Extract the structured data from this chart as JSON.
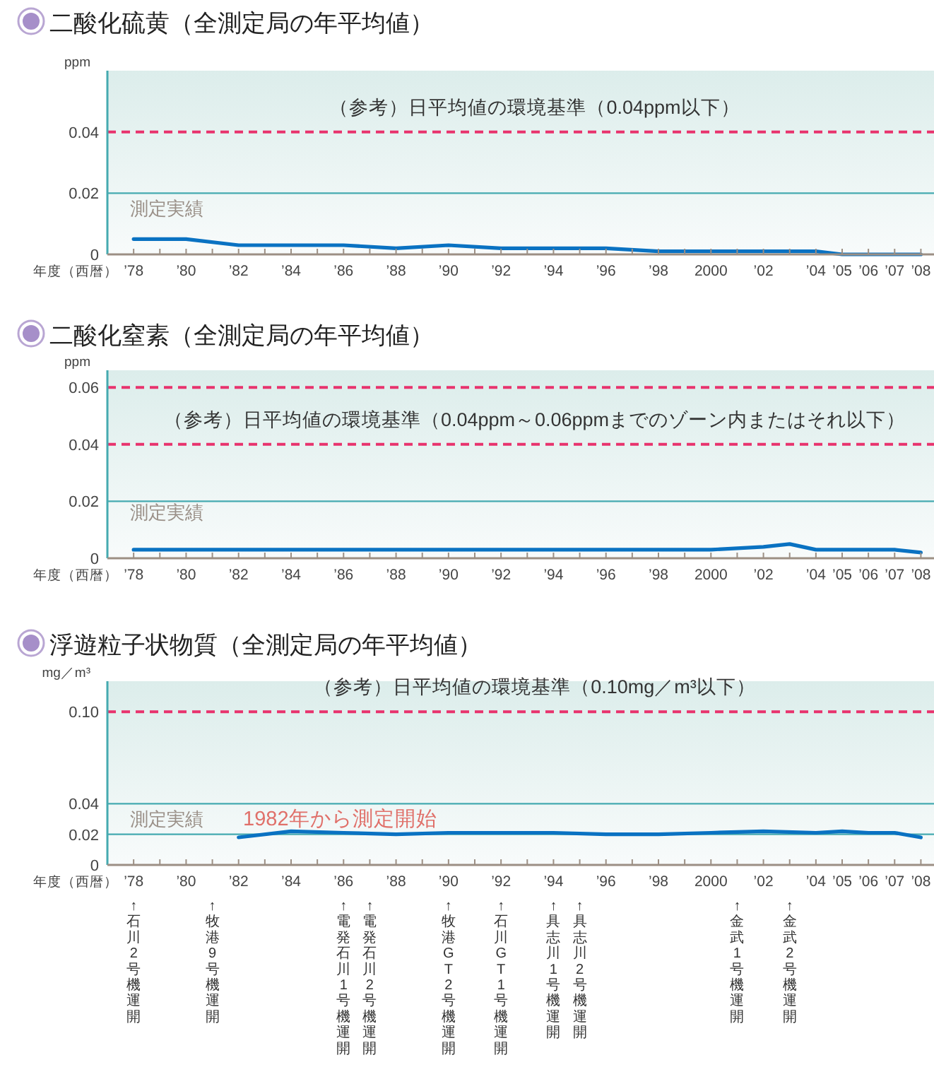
{
  "chart_data": [
    {
      "type": "line",
      "title": "二酸化硫黄（全測定局の年平均値）",
      "ylabel": "ppm",
      "xlabel": "年度（西暦）",
      "xlim": [
        1977,
        2008.5
      ],
      "ylim": [
        0,
        0.06
      ],
      "yticks": [
        0,
        0.02,
        0.04
      ],
      "xticks": [
        {
          "value": 1978,
          "label": "’78"
        },
        {
          "value": 1979,
          "label": null
        },
        {
          "value": 1980,
          "label": "’80"
        },
        {
          "value": 1981,
          "label": null
        },
        {
          "value": 1982,
          "label": "’82"
        },
        {
          "value": 1983,
          "label": null
        },
        {
          "value": 1984,
          "label": "’84"
        },
        {
          "value": 1985,
          "label": null
        },
        {
          "value": 1986,
          "label": "’86"
        },
        {
          "value": 1987,
          "label": null
        },
        {
          "value": 1988,
          "label": "’88"
        },
        {
          "value": 1989,
          "label": null
        },
        {
          "value": 1990,
          "label": "’90"
        },
        {
          "value": 1991,
          "label": null
        },
        {
          "value": 1992,
          "label": "’92"
        },
        {
          "value": 1993,
          "label": null
        },
        {
          "value": 1994,
          "label": "’94"
        },
        {
          "value": 1995,
          "label": null
        },
        {
          "value": 1996,
          "label": "’96"
        },
        {
          "value": 1997,
          "label": null
        },
        {
          "value": 1998,
          "label": "’98"
        },
        {
          "value": 1999,
          "label": null
        },
        {
          "value": 2000,
          "label": "2000"
        },
        {
          "value": 2001,
          "label": null
        },
        {
          "value": 2002,
          "label": "’02"
        },
        {
          "value": 2003,
          "label": null
        },
        {
          "value": 2004,
          "label": "’04"
        },
        {
          "value": 2005,
          "label": "’05"
        },
        {
          "value": 2006,
          "label": "’06"
        },
        {
          "value": 2007,
          "label": "’07"
        },
        {
          "value": 2008,
          "label": "’08"
        }
      ],
      "x": [
        1978,
        1980,
        1982,
        1984,
        1986,
        1988,
        1990,
        1992,
        1994,
        1996,
        1998,
        2000,
        2002,
        2004,
        2005,
        2006,
        2007,
        2008
      ],
      "series": [
        {
          "color": "#0a72c2",
          "values": [
            0.005,
            0.005,
            0.003,
            0.003,
            0.003,
            0.002,
            0.003,
            0.002,
            0.002,
            0.002,
            0.001,
            0.001,
            0.001,
            0.001,
            0,
            0,
            0,
            0
          ]
        }
      ],
      "ref_lines": [
        {
          "axis": "y",
          "value": 0.04,
          "color": "#e8336d",
          "line_style": "dashed",
          "label": "（参考）日平均値の環境基準（0.04ppm以下）"
        },
        {
          "axis": "y",
          "value": 0.02,
          "color": "#45aab0",
          "line_style": "solid"
        }
      ],
      "annotations": [
        "測定実績"
      ]
    },
    {
      "type": "line",
      "title": "二酸化窒素（全測定局の年平均値）",
      "ylabel": "ppm",
      "xlabel": "年度（西暦）",
      "xlim": [
        1977,
        2008.5
      ],
      "ylim": [
        0,
        0.066
      ],
      "yticks": [
        0,
        0.02,
        0.04,
        0.06
      ],
      "xticks": [
        {
          "value": 1978,
          "label": "’78"
        },
        {
          "value": 1979,
          "label": null
        },
        {
          "value": 1980,
          "label": "’80"
        },
        {
          "value": 1981,
          "label": null
        },
        {
          "value": 1982,
          "label": "’82"
        },
        {
          "value": 1983,
          "label": null
        },
        {
          "value": 1984,
          "label": "’84"
        },
        {
          "value": 1985,
          "label": null
        },
        {
          "value": 1986,
          "label": "’86"
        },
        {
          "value": 1987,
          "label": null
        },
        {
          "value": 1988,
          "label": "’88"
        },
        {
          "value": 1989,
          "label": null
        },
        {
          "value": 1990,
          "label": "’90"
        },
        {
          "value": 1991,
          "label": null
        },
        {
          "value": 1992,
          "label": "’92"
        },
        {
          "value": 1993,
          "label": null
        },
        {
          "value": 1994,
          "label": "’94"
        },
        {
          "value": 1995,
          "label": null
        },
        {
          "value": 1996,
          "label": "’96"
        },
        {
          "value": 1997,
          "label": null
        },
        {
          "value": 1998,
          "label": "’98"
        },
        {
          "value": 1999,
          "label": null
        },
        {
          "value": 2000,
          "label": "2000"
        },
        {
          "value": 2001,
          "label": null
        },
        {
          "value": 2002,
          "label": "’02"
        },
        {
          "value": 2003,
          "label": null
        },
        {
          "value": 2004,
          "label": "’04"
        },
        {
          "value": 2005,
          "label": "’05"
        },
        {
          "value": 2006,
          "label": "’06"
        },
        {
          "value": 2007,
          "label": "’07"
        },
        {
          "value": 2008,
          "label": "’08"
        }
      ],
      "x": [
        1978,
        1980,
        1982,
        1984,
        1986,
        1988,
        1990,
        1992,
        1994,
        1996,
        1998,
        2000,
        2002,
        2003,
        2004,
        2005,
        2006,
        2007,
        2008
      ],
      "series": [
        {
          "color": "#0a72c2",
          "values": [
            0.003,
            0.003,
            0.003,
            0.003,
            0.003,
            0.003,
            0.003,
            0.003,
            0.003,
            0.003,
            0.003,
            0.003,
            0.004,
            0.005,
            0.003,
            0.003,
            0.003,
            0.003,
            0.002
          ]
        }
      ],
      "ref_lines": [
        {
          "axis": "y",
          "value": 0.06,
          "color": "#e8336d",
          "line_style": "dashed"
        },
        {
          "axis": "y",
          "value": 0.04,
          "color": "#e8336d",
          "line_style": "dashed",
          "label": "（参考）日平均値の環境基準（0.04ppm～0.06ppmまでのゾーン内またはそれ以下）"
        },
        {
          "axis": "y",
          "value": 0.02,
          "color": "#45aab0",
          "line_style": "solid"
        }
      ],
      "annotations": [
        "測定実績"
      ]
    },
    {
      "type": "line",
      "title": "浮遊粒子状物質（全測定局の年平均値）",
      "ylabel": "mg／m³",
      "xlabel": "年度（西暦）",
      "grid": "y",
      "xlim": [
        1977,
        2008.5
      ],
      "ylim": [
        0,
        0.12
      ],
      "yticks": [
        0,
        0.02,
        0.04,
        {
          "value": 0.1,
          "label": "0.10"
        }
      ],
      "xticks": [
        {
          "value": 1978,
          "label": "’78"
        },
        {
          "value": 1979,
          "label": null
        },
        {
          "value": 1980,
          "label": "’80"
        },
        {
          "value": 1981,
          "label": null
        },
        {
          "value": 1982,
          "label": "’82"
        },
        {
          "value": 1983,
          "label": null
        },
        {
          "value": 1984,
          "label": "’84"
        },
        {
          "value": 1985,
          "label": null
        },
        {
          "value": 1986,
          "label": "’86"
        },
        {
          "value": 1987,
          "label": null
        },
        {
          "value": 1988,
          "label": "’88"
        },
        {
          "value": 1989,
          "label": null
        },
        {
          "value": 1990,
          "label": "’90"
        },
        {
          "value": 1991,
          "label": null
        },
        {
          "value": 1992,
          "label": "’92"
        },
        {
          "value": 1993,
          "label": null
        },
        {
          "value": 1994,
          "label": "’94"
        },
        {
          "value": 1995,
          "label": null
        },
        {
          "value": 1996,
          "label": "’96"
        },
        {
          "value": 1997,
          "label": null
        },
        {
          "value": 1998,
          "label": "’98"
        },
        {
          "value": 1999,
          "label": null
        },
        {
          "value": 2000,
          "label": "2000"
        },
        {
          "value": 2001,
          "label": null
        },
        {
          "value": 2002,
          "label": "’02"
        },
        {
          "value": 2003,
          "label": null
        },
        {
          "value": 2004,
          "label": "’04"
        },
        {
          "value": 2005,
          "label": "’05"
        },
        {
          "value": 2006,
          "label": "’06"
        },
        {
          "value": 2007,
          "label": "’07"
        },
        {
          "value": 2008,
          "label": "’08"
        }
      ],
      "x": [
        1982,
        1984,
        1986,
        1988,
        1990,
        1992,
        1994,
        1996,
        1998,
        2000,
        2002,
        2004,
        2005,
        2006,
        2007,
        2008
      ],
      "series": [
        {
          "color": "#0a72c2",
          "values": [
            0.018,
            0.022,
            0.021,
            0.02,
            0.021,
            0.021,
            0.021,
            0.02,
            0.02,
            0.021,
            0.022,
            0.021,
            0.022,
            0.021,
            0.021,
            0.018
          ]
        }
      ],
      "ref_lines": [
        {
          "axis": "y",
          "value": 0.1,
          "color": "#e8336d",
          "line_style": "dashed",
          "label": "（参考）日平均値の環境基準（0.10mg／m³以下）"
        }
      ],
      "annotations": [
        "測定実績",
        "1982年から測定開始",
        "↑石川2号機運開",
        "↑牧港9号機運開",
        "↑電発石川1号機運開",
        "↑電発石川2号機運開",
        "↑牧港GT2号機運開",
        "↑石川GT1号機運開",
        "↑具志川1号機運開",
        "↑具志川2号機運開",
        "↑金武1号機運開",
        "↑金武2号機運開"
      ]
    }
  ]
}
